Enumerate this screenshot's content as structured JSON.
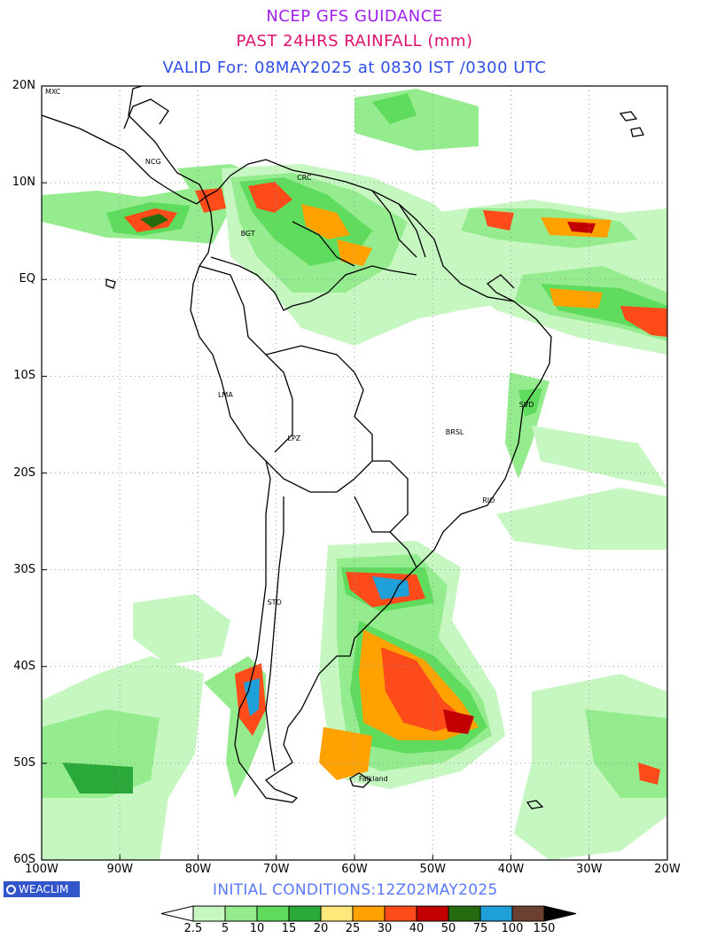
{
  "header": {
    "line1": "NCEP GFS GUIDANCE",
    "line2": "PAST 24HRS RAINFALL (mm)",
    "line3": "VALID For: 08MAY2025 at 0830 IST /0300 UTC"
  },
  "colors": {
    "line1": "#a020f0",
    "line2": "#e0106f",
    "line3": "#2f4fe8"
  },
  "map": {
    "lat_labels": [
      "20N",
      "10N",
      "EQ",
      "10S",
      "20S",
      "30S",
      "40S",
      "50S",
      "60S"
    ],
    "lon_labels": [
      "100W",
      "90W",
      "80W",
      "70W",
      "60W",
      "50W",
      "40W",
      "30W",
      "20W"
    ],
    "cities": [
      {
        "name": "MXC",
        "lon": -99.1,
        "lat": 19.4
      },
      {
        "name": "NCG",
        "lon": -86.3,
        "lat": 12.1
      },
      {
        "name": "CRC",
        "lon": -66.9,
        "lat": 10.5
      },
      {
        "name": "BGT",
        "lon": -74.1,
        "lat": 4.7
      },
      {
        "name": "LMA",
        "lon": -77.0,
        "lat": -12.0
      },
      {
        "name": "LPZ",
        "lon": -68.1,
        "lat": -16.5
      },
      {
        "name": "BRSL",
        "lon": -47.9,
        "lat": -15.8
      },
      {
        "name": "SVD",
        "lon": -38.5,
        "lat": -13.0
      },
      {
        "name": "RIO",
        "lon": -43.2,
        "lat": -22.9
      },
      {
        "name": "STO",
        "lon": -70.7,
        "lat": -33.4
      },
      {
        "name": "Falkland",
        "lon": -59.0,
        "lat": -51.7
      }
    ]
  },
  "footer": {
    "logo": "WEACLIM",
    "initial_conditions": "INITIAL CONDITIONS:12Z02MAY2025"
  },
  "legend": {
    "unit": "mm",
    "labels": [
      "2.5",
      "5",
      "10",
      "15",
      "20",
      "25",
      "30",
      "40",
      "50",
      "75",
      "100",
      "150"
    ],
    "colors": [
      "#c6f7c1",
      "#95ec8e",
      "#5fdc5d",
      "#2aa83a",
      "#ffe87a",
      "#ffa200",
      "#ff4b1a",
      "#c20000",
      "#236b0e",
      "#1fa0d8",
      "#6b4030",
      "#000000"
    ]
  }
}
